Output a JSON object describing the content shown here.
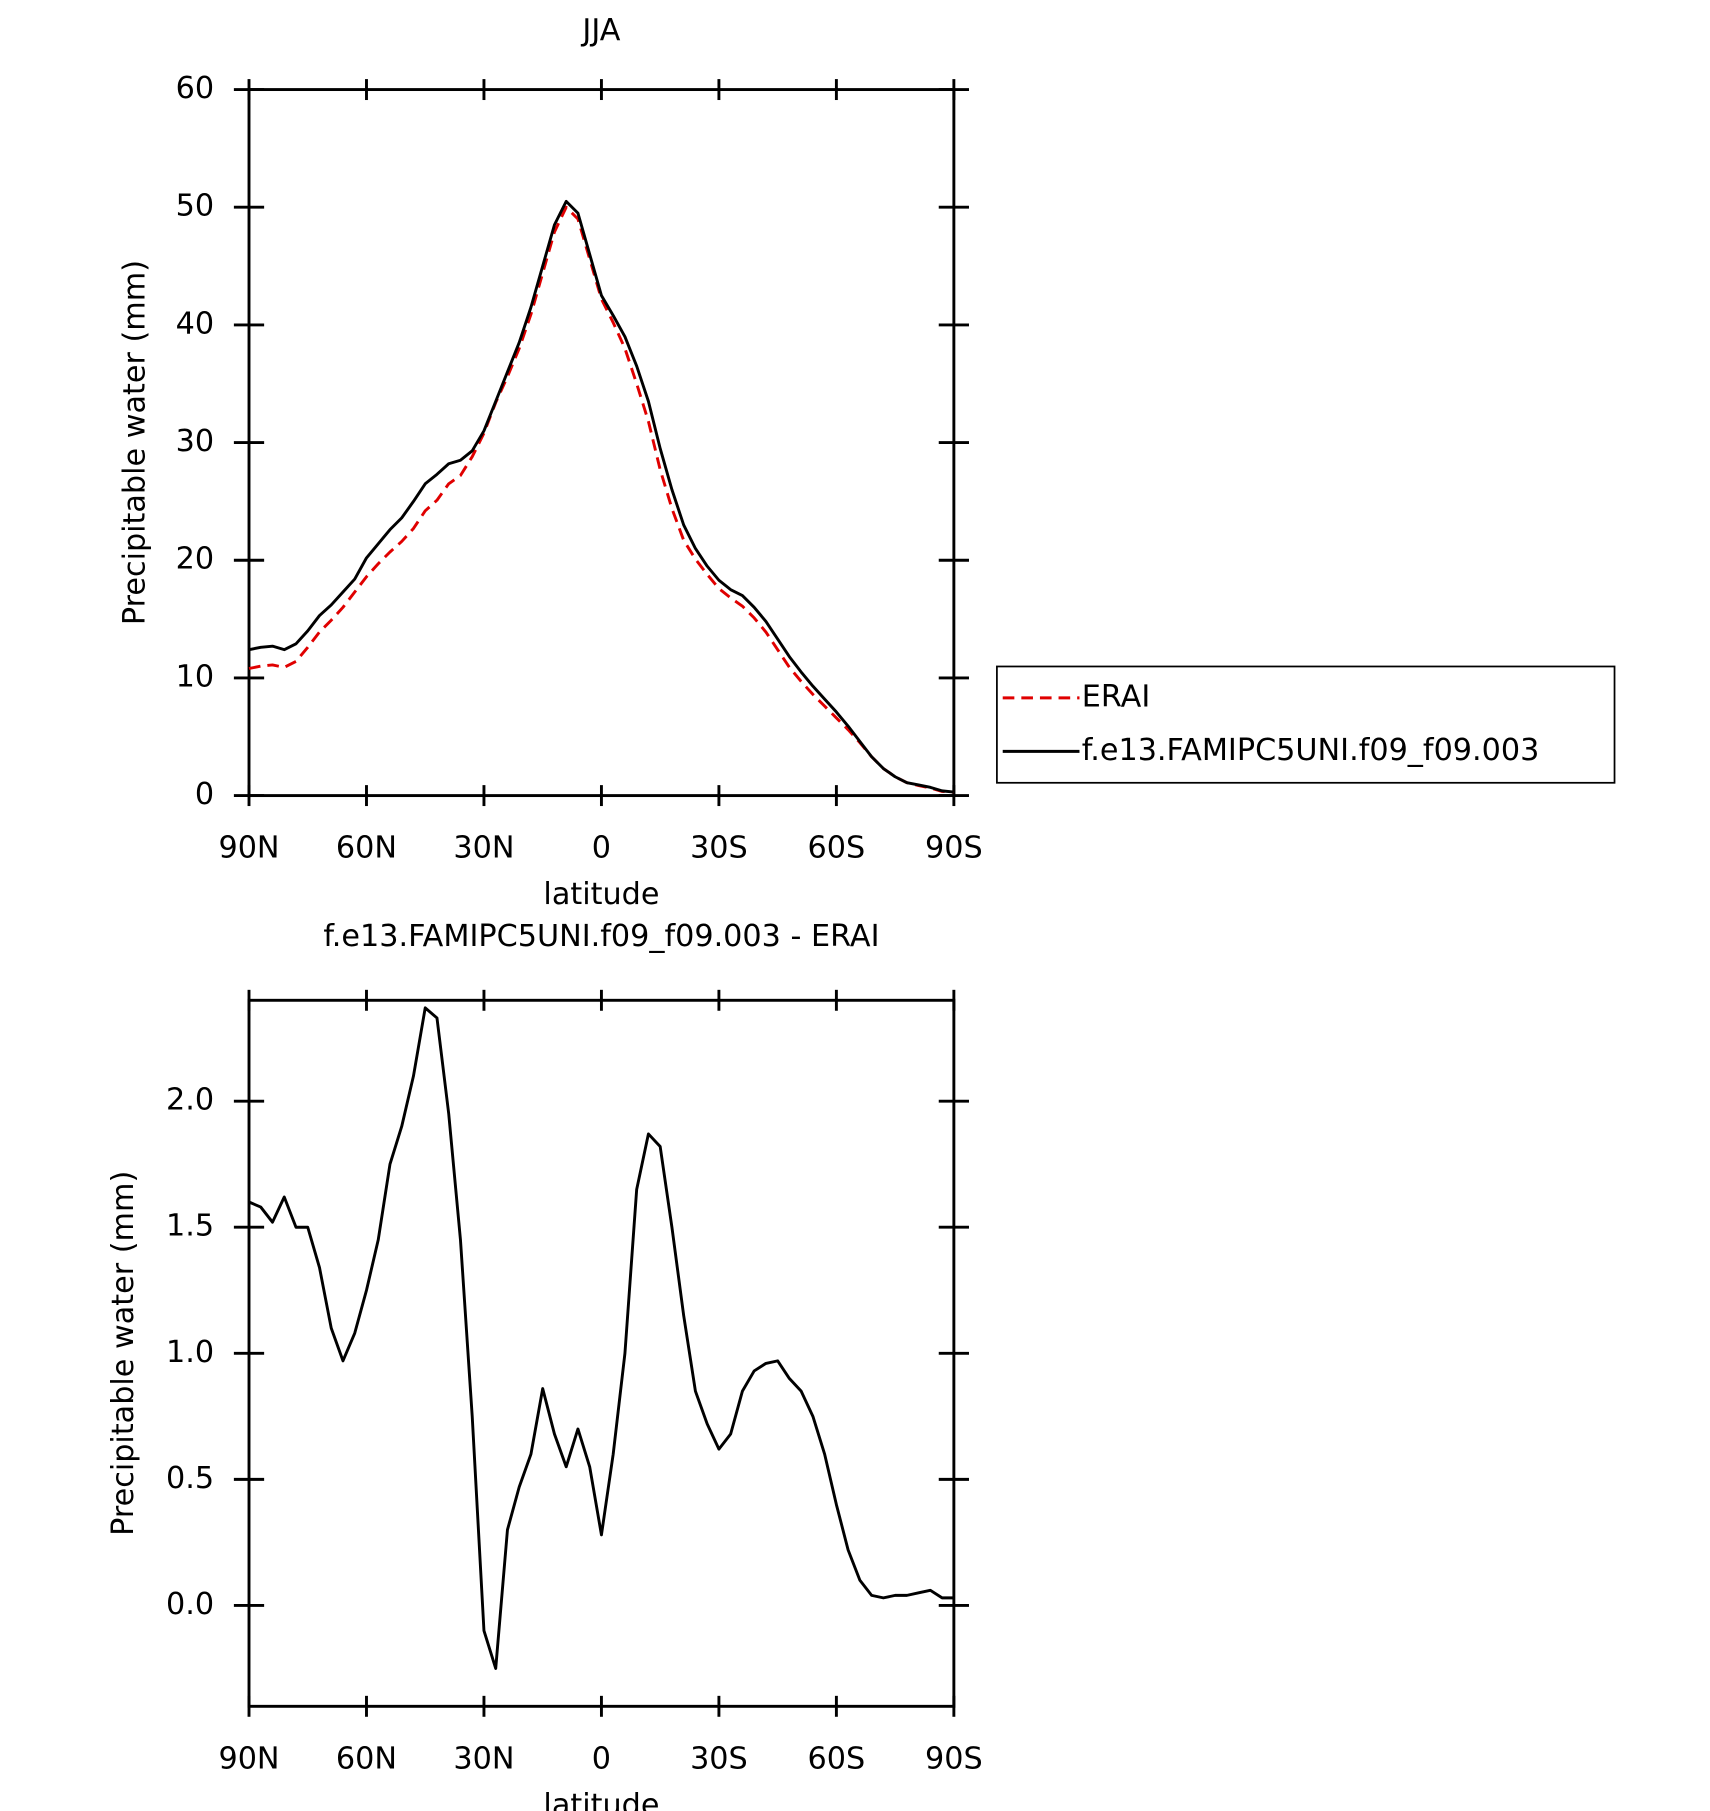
{
  "chart_data": [
    {
      "type": "line",
      "title": "JJA",
      "xlabel": "latitude",
      "ylabel": "Precipitable water (mm)",
      "x": [
        90,
        87,
        84,
        81,
        78,
        75,
        72,
        69,
        66,
        63,
        60,
        57,
        54,
        51,
        48,
        45,
        42,
        39,
        36,
        33,
        30,
        27,
        24,
        21,
        18,
        15,
        12,
        9,
        6,
        3,
        0,
        -3,
        -6,
        -9,
        -12,
        -15,
        -18,
        -21,
        -24,
        -27,
        -30,
        -33,
        -36,
        -39,
        -42,
        -45,
        -48,
        -51,
        -54,
        -57,
        -60,
        -63,
        -66,
        -69,
        -72,
        -75,
        -78,
        -81,
        -84,
        -87,
        -90
      ],
      "series": [
        {
          "name": "ERAI",
          "color": "#e00000",
          "dashed": true,
          "values": [
            10.8,
            11.0,
            11.1,
            10.9,
            11.4,
            12.6,
            13.9,
            14.9,
            16.0,
            17.3,
            18.6,
            19.7,
            20.7,
            21.6,
            22.7,
            24.2,
            25.1,
            26.5,
            27.2,
            28.8,
            30.8,
            33.4,
            35.6,
            38.0,
            40.9,
            44.4,
            47.9,
            50.0,
            49.0,
            45.6,
            42.2,
            40.2,
            38.0,
            35.0,
            31.8,
            27.7,
            24.4,
            21.7,
            20.1,
            18.8,
            17.6,
            16.8,
            16.1,
            15.1,
            13.9,
            12.4,
            10.9,
            9.7,
            8.6,
            7.6,
            6.6,
            5.6,
            4.5,
            3.3,
            2.3,
            1.6,
            1.1,
            0.85,
            0.65,
            0.35,
            0.3
          ]
        },
        {
          "name": "f.e13.FAMIPC5UNI.f09_f09.003",
          "color": "#000000",
          "dashed": false,
          "values": [
            12.4,
            12.6,
            12.7,
            12.4,
            12.9,
            14.0,
            15.3,
            16.2,
            17.3,
            18.4,
            20.2,
            21.4,
            22.6,
            23.6,
            25.0,
            26.5,
            27.3,
            28.2,
            28.5,
            29.3,
            31.0,
            33.5,
            36.0,
            38.5,
            41.5,
            45.0,
            48.5,
            50.5,
            49.5,
            46.0,
            42.5,
            40.8,
            39.0,
            36.5,
            33.5,
            29.5,
            26.0,
            23.0,
            21.0,
            19.5,
            18.3,
            17.5,
            17.0,
            16.0,
            14.8,
            13.3,
            11.8,
            10.5,
            9.3,
            8.2,
            7.1,
            5.9,
            4.6,
            3.3,
            2.3,
            1.6,
            1.1,
            0.9,
            0.7,
            0.4,
            0.3
          ]
        }
      ],
      "xlim": [
        90,
        -90
      ],
      "xticks": [
        {
          "value": 90,
          "label": "90N"
        },
        {
          "value": 60,
          "label": "60N"
        },
        {
          "value": 30,
          "label": "30N"
        },
        0,
        {
          "value": -30,
          "label": "30S"
        },
        {
          "value": -60,
          "label": "60S"
        },
        {
          "value": -90,
          "label": "90S"
        }
      ],
      "ylim": [
        0,
        60
      ],
      "yticks": [
        0,
        10,
        20,
        30,
        40,
        50,
        60
      ],
      "legend": "right"
    },
    {
      "type": "line",
      "title": "f.e13.FAMIPC5UNI.f09_f09.003 - ERAI",
      "xlabel": "latitude",
      "ylabel": "Precipitable water (mm)",
      "x": [
        90,
        87,
        84,
        81,
        78,
        75,
        72,
        69,
        66,
        63,
        60,
        57,
        54,
        51,
        48,
        45,
        42,
        39,
        36,
        33,
        30,
        27,
        24,
        21,
        18,
        15,
        12,
        9,
        6,
        3,
        0,
        -3,
        -6,
        -9,
        -12,
        -15,
        -18,
        -21,
        -24,
        -27,
        -30,
        -33,
        -36,
        -39,
        -42,
        -45,
        -48,
        -51,
        -54,
        -57,
        -60,
        -63,
        -66,
        -69,
        -72,
        -75,
        -78,
        -81,
        -84,
        -87,
        -90
      ],
      "series": [
        {
          "color": "#000000",
          "dashed": false,
          "values": [
            1.6,
            1.58,
            1.52,
            1.62,
            1.5,
            1.5,
            1.34,
            1.1,
            0.97,
            1.08,
            1.25,
            1.45,
            1.75,
            1.9,
            2.1,
            2.37,
            2.33,
            1.95,
            1.45,
            0.75,
            -0.1,
            -0.25,
            0.3,
            0.47,
            0.6,
            0.86,
            0.68,
            0.55,
            0.7,
            0.55,
            0.28,
            0.6,
            1.0,
            1.65,
            1.87,
            1.82,
            1.5,
            1.15,
            0.85,
            0.72,
            0.62,
            0.68,
            0.85,
            0.93,
            0.96,
            0.97,
            0.9,
            0.85,
            0.75,
            0.6,
            0.4,
            0.22,
            0.1,
            0.04,
            0.03,
            0.04,
            0.04,
            0.05,
            0.06,
            0.03,
            0.03
          ]
        }
      ],
      "xlim": [
        90,
        -90
      ],
      "xticks": [
        {
          "value": 90,
          "label": "90N"
        },
        {
          "value": 60,
          "label": "60N"
        },
        {
          "value": 30,
          "label": "30N"
        },
        0,
        {
          "value": -30,
          "label": "30S"
        },
        {
          "value": -60,
          "label": "60S"
        },
        {
          "value": -90,
          "label": "90S"
        }
      ],
      "ylim": [
        -0.4,
        2.4
      ],
      "yticks": [
        {
          "value": 0,
          "label": "0.0"
        },
        0.5,
        {
          "value": 1,
          "label": "1.0"
        },
        1.5,
        {
          "value": 2,
          "label": "2.0"
        }
      ]
    }
  ]
}
